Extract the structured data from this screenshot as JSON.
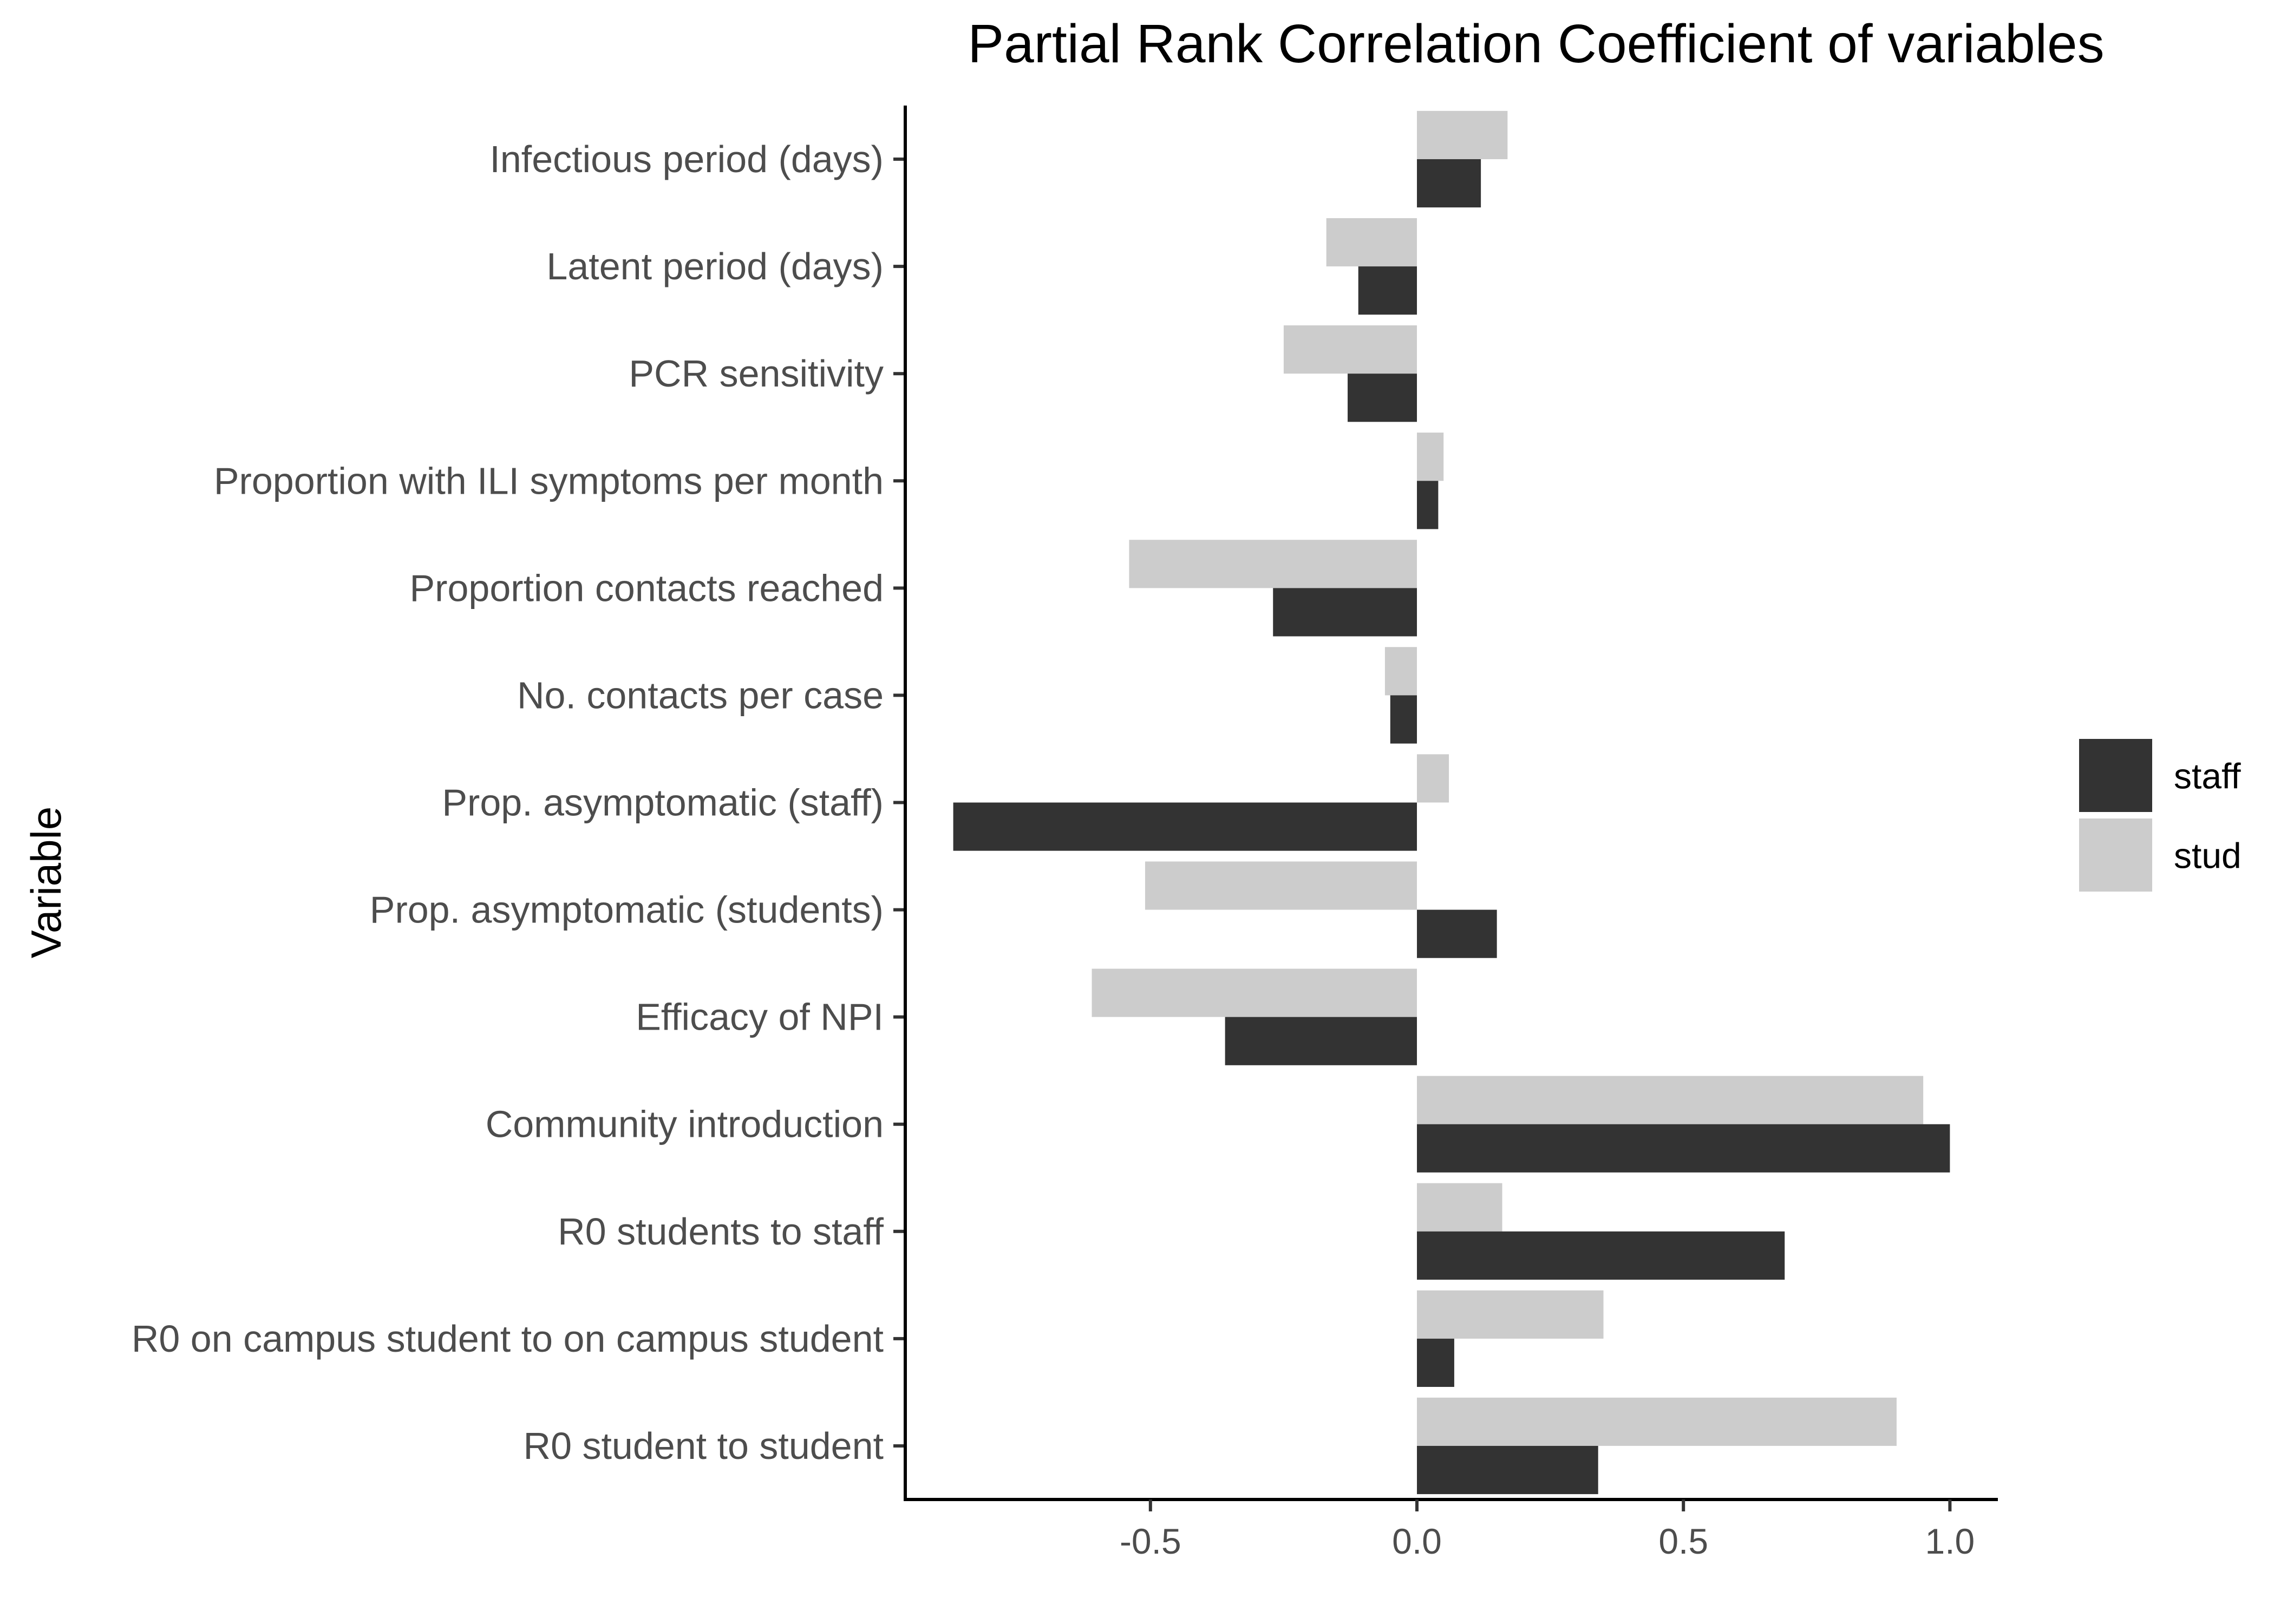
{
  "chart_data": {
    "type": "bar",
    "orientation": "horizontal",
    "title": "Partial Rank Correlation Coefficient of variables",
    "xlabel": "",
    "ylabel": "Variable",
    "categories": [
      "Infectious period (days)",
      "Latent period (days)",
      "PCR sensitivity",
      "Proportion with ILI symptoms per month",
      "Proportion contacts reached",
      "No. contacts per case",
      "Prop. asymptomatic (staff)",
      "Prop. asymptomatic (students)",
      "Efficacy of NPI",
      "Community introduction",
      "R0 students to staff",
      "R0 on campus student to on campus student",
      "R0 student to student"
    ],
    "series": [
      {
        "name": "staff",
        "color": "#333333",
        "values": [
          0.12,
          -0.11,
          -0.13,
          0.04,
          -0.27,
          -0.05,
          -0.87,
          0.15,
          -0.36,
          1.0,
          0.69,
          0.07,
          0.34
        ]
      },
      {
        "name": "stud",
        "color": "#cccccc",
        "values": [
          0.17,
          -0.17,
          -0.25,
          0.05,
          -0.54,
          -0.06,
          0.06,
          -0.51,
          -0.61,
          0.95,
          0.16,
          0.35,
          0.9
        ]
      }
    ],
    "xlim": [
      -0.96,
      1.09
    ],
    "xticks": [
      "-0.5",
      "0.0",
      "0.5",
      "1.0"
    ],
    "xtick_values": [
      -0.5,
      0.0,
      0.5,
      1.0
    ],
    "grid": false,
    "legend_position": "right"
  }
}
